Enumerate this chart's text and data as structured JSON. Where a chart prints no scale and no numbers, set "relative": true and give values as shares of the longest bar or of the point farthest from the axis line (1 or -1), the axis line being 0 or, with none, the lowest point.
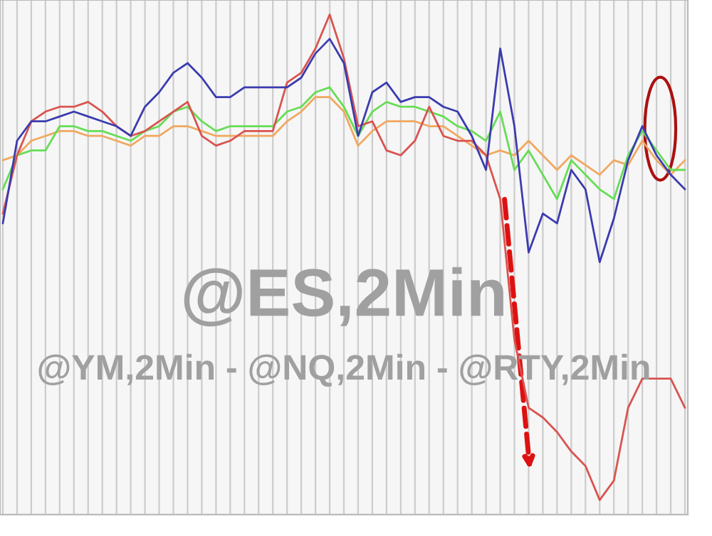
{
  "chart_data": {
    "type": "line",
    "relative": true,
    "grid": "x",
    "legend": false,
    "marker": "none",
    "line_style": "solid",
    "categories": [
      null,
      null,
      null,
      null,
      null,
      null,
      null,
      null,
      null,
      null,
      null,
      null,
      null,
      null,
      null,
      null,
      null,
      null,
      null,
      null,
      null,
      null,
      null,
      null,
      null,
      null,
      null,
      null,
      null,
      null,
      null,
      null,
      null,
      null,
      null,
      null,
      null,
      null,
      null,
      null,
      null,
      null,
      null,
      null,
      null,
      null,
      null,
      null,
      null
    ],
    "annotations": [
      "@ES,2Min",
      "@YM,2Min - @NQ,2Min - @RTY,2Min"
    ],
    "series": [
      {
        "color": "#f0a860",
        "values": [
          0.7,
          0.71,
          0.74,
          0.75,
          0.76,
          0.76,
          0.75,
          0.75,
          0.74,
          0.73,
          0.75,
          0.75,
          0.77,
          0.77,
          0.76,
          0.75,
          0.75,
          0.75,
          0.75,
          0.75,
          0.78,
          0.8,
          0.83,
          0.83,
          0.8,
          0.73,
          0.76,
          0.78,
          0.78,
          0.78,
          0.77,
          0.77,
          0.75,
          0.73,
          0.71,
          0.72,
          0.71,
          0.74,
          0.71,
          0.68,
          0.71,
          0.69,
          0.67,
          0.7,
          0.69,
          0.74,
          0.7,
          0.67,
          0.7
        ]
      },
      {
        "color": "#66dd55",
        "values": [
          0.64,
          0.71,
          0.72,
          0.72,
          0.77,
          0.77,
          0.76,
          0.76,
          0.75,
          0.74,
          0.76,
          0.77,
          0.8,
          0.81,
          0.78,
          0.76,
          0.77,
          0.77,
          0.77,
          0.77,
          0.8,
          0.81,
          0.84,
          0.85,
          0.81,
          0.75,
          0.8,
          0.82,
          0.81,
          0.81,
          0.8,
          0.79,
          0.77,
          0.76,
          0.74,
          0.8,
          0.68,
          0.72,
          0.67,
          0.62,
          0.7,
          0.67,
          0.64,
          0.62,
          0.71,
          0.76,
          0.72,
          0.68,
          0.68
        ]
      },
      {
        "color": "#d9534f",
        "values": [
          0.59,
          0.71,
          0.78,
          0.8,
          0.81,
          0.81,
          0.82,
          0.8,
          0.77,
          0.75,
          0.76,
          0.78,
          0.8,
          0.82,
          0.75,
          0.73,
          0.74,
          0.76,
          0.76,
          0.76,
          0.86,
          0.88,
          0.93,
          1.0,
          0.91,
          0.77,
          0.78,
          0.72,
          0.71,
          0.74,
          0.81,
          0.75,
          0.74,
          0.74,
          0.71,
          0.62,
          0.33,
          0.19,
          0.17,
          0.14,
          0.1,
          0.07,
          0,
          0.04,
          0.19,
          0.25,
          0.25,
          0.25,
          0.19
        ]
      },
      {
        "color": "#3b3bb0",
        "values": [
          0.57,
          0.74,
          0.78,
          0.78,
          0.79,
          0.8,
          0.79,
          0.78,
          0.77,
          0.75,
          0.81,
          0.84,
          0.88,
          0.9,
          0.87,
          0.83,
          0.83,
          0.85,
          0.85,
          0.85,
          0.85,
          0.87,
          0.92,
          0.95,
          0.9,
          0.75,
          0.84,
          0.86,
          0.82,
          0.83,
          0.83,
          0.81,
          0.8,
          0.75,
          0.68,
          0.93,
          0.77,
          0.51,
          0.59,
          0.57,
          0.68,
          0.64,
          0.49,
          0.58,
          0.7,
          0.77,
          0.71,
          0.67,
          0.64
        ]
      }
    ]
  }
}
